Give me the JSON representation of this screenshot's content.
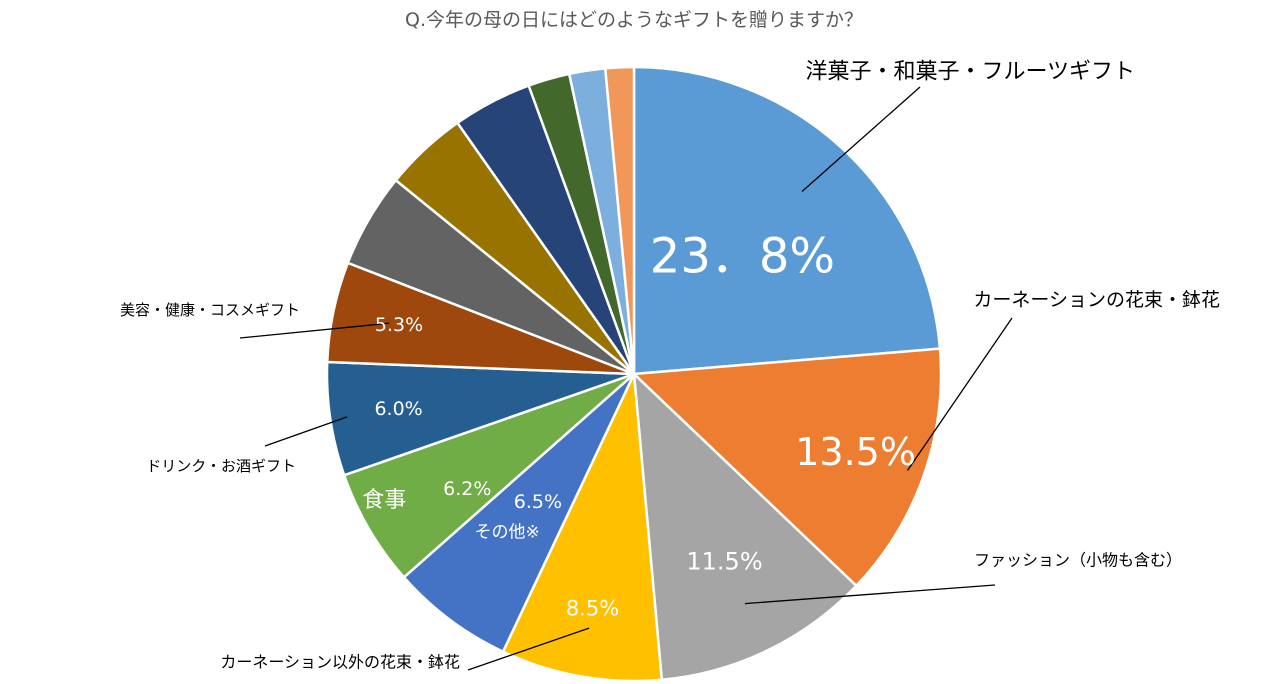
{
  "title": "Q.今年の母の日にはどのようなギフトを贈りますか？",
  "chart_data": {
    "type": "pie",
    "title": "Q.今年の母の日にはどのようなギフトを贈りますか？",
    "slices": [
      {
        "category": "洋菓子・和菓子・フルーツギフト",
        "value": 23.8,
        "value_label": "23．8%",
        "color": "#5B9BD5"
      },
      {
        "category": "カーネーションの花束・鉢花",
        "value": 13.5,
        "value_label": "13.5%",
        "color": "#ED7D31"
      },
      {
        "category": "ファッション（小物も含む）",
        "value": 11.5,
        "value_label": "11.5%",
        "color": "#A5A5A5"
      },
      {
        "category": "カーネーション以外の花束・鉢花",
        "value": 8.5,
        "value_label": "8.5%",
        "color": "#FFC000"
      },
      {
        "category": "その他※",
        "value": 6.5,
        "value_label": "6.5%",
        "color": "#4472C4"
      },
      {
        "category": "食事",
        "value": 6.2,
        "value_label": "6.2%",
        "color": "#70AD47"
      },
      {
        "category": "ドリンク・お酒ギフト",
        "value": 6.0,
        "value_label": "6.0%",
        "color": "#255E91"
      },
      {
        "category": "美容・健康・コスメギフト",
        "value": 5.3,
        "value_label": "5.3%",
        "color": "#9E480E"
      },
      {
        "category": "",
        "value": 5.0,
        "value_label": "",
        "color": "#636363"
      },
      {
        "category": "",
        "value": 4.4,
        "value_label": "",
        "color": "#997300"
      },
      {
        "category": "",
        "value": 4.2,
        "value_label": "",
        "color": "#264478"
      },
      {
        "category": "",
        "value": 2.2,
        "value_label": "",
        "color": "#43682B"
      },
      {
        "category": "",
        "value": 1.9,
        "value_label": "",
        "color": "#7CAFDD"
      },
      {
        "category": "",
        "value": 1.5,
        "value_label": "",
        "color": "#F1975A"
      }
    ]
  }
}
